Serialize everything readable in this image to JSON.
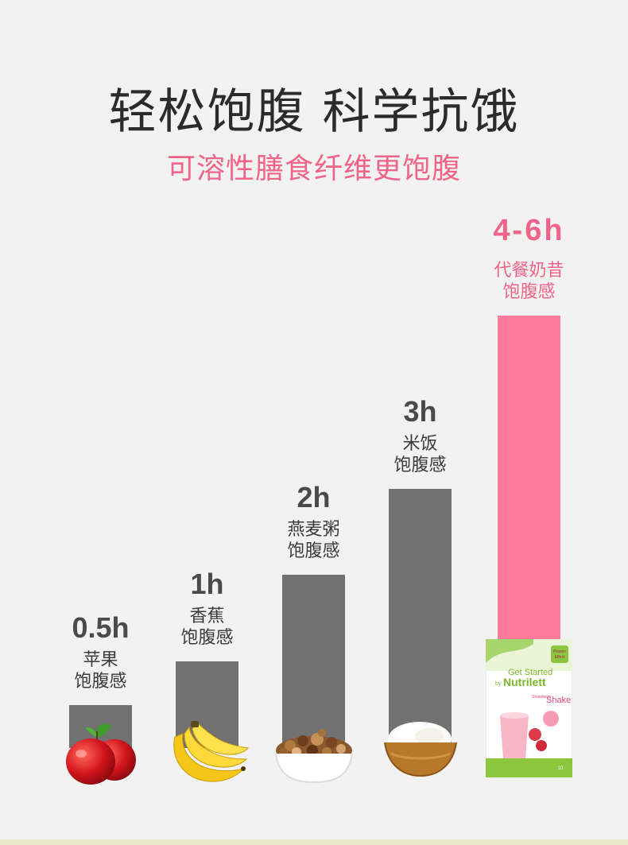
{
  "title": "轻松饱腹 科学抗饿",
  "subtitle": "可溶性膳食纤维更饱腹",
  "colors": {
    "background": "#f2f2f2",
    "bar_gray": "#717171",
    "bar_pink": "#ff7b9c",
    "accent_pink": "#f0648a",
    "label_dark": "#3a3a3a"
  },
  "chart_data": {
    "type": "bar",
    "categories": [
      "苹果",
      "香蕉",
      "燕麦粥",
      "米饭",
      "代餐奶昔"
    ],
    "values": [
      0.5,
      1,
      2,
      3,
      5
    ],
    "value_labels": [
      "0.5h",
      "1h",
      "2h",
      "3h",
      "4-6h"
    ],
    "desc_lines": [
      [
        "苹果",
        "饱腹感"
      ],
      [
        "香蕉",
        "饱腹感"
      ],
      [
        "燕麦粥",
        "饱腹感"
      ],
      [
        "米饭",
        "饱腹感"
      ],
      [
        "代餐奶昔",
        "饱腹感"
      ]
    ],
    "highlight_index": 4,
    "unit": "h",
    "ylim": [
      0,
      5
    ],
    "grid": false,
    "legend": "none"
  },
  "product": {
    "brand_line1": "Get Started",
    "brand_by": "by",
    "brand_name": "Nutrilett",
    "flavor": "Strawberry",
    "product_type": "Shake",
    "badge_line1": "Proven",
    "badge_line2": "Effect",
    "count": "10"
  },
  "food_icons": [
    "apple-icon",
    "banana-icon",
    "granola-bowl-icon",
    "rice-bowl-icon",
    "shake-box-icon"
  ]
}
